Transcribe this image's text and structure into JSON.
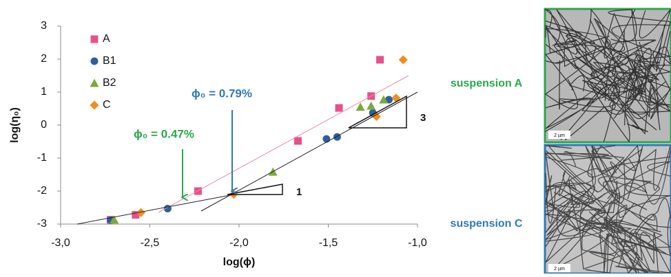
{
  "chart_data": {
    "type": "scatter",
    "xlabel": "log(ϕ)",
    "ylabel": "log(η₀)",
    "xlim": [
      -3.0,
      -1.0
    ],
    "xticks": [
      {
        "value": -3.0,
        "label": "-3,0"
      },
      {
        "value": -2.5,
        "label": "-2,5"
      },
      {
        "value": -2.0,
        "label": "-2,0"
      },
      {
        "value": -1.5,
        "label": "-1,5"
      },
      {
        "value": -1.0,
        "label": "-1,0"
      }
    ],
    "ylim": [
      -3,
      3
    ],
    "yticks": [
      3,
      2,
      1,
      0,
      -1,
      -2,
      -3
    ],
    "legend": "upper left",
    "series": [
      {
        "name": "A",
        "color": "#e8508a",
        "marker": "square",
        "x": [
          -2.72,
          -2.58,
          -2.23,
          -1.67,
          -1.44,
          -1.26,
          -1.21
        ],
        "values": [
          -2.87,
          -2.72,
          -2.0,
          -0.48,
          0.52,
          0.88,
          1.98
        ]
      },
      {
        "name": "B1",
        "color": "#2e5f9a",
        "marker": "circle",
        "x": [
          -2.72,
          -2.4,
          -1.51,
          -1.45,
          -1.25,
          -1.16
        ],
        "values": [
          -2.88,
          -2.53,
          -0.42,
          -0.36,
          0.37,
          0.77
        ]
      },
      {
        "name": "B2",
        "color": "#7aab3a",
        "marker": "triangle",
        "x": [
          -2.7,
          -1.81,
          -1.32,
          -1.26,
          -1.19
        ],
        "values": [
          -2.87,
          -1.42,
          0.55,
          0.58,
          0.77
        ]
      },
      {
        "name": "C",
        "color": "#f28c1e",
        "marker": "diamond",
        "x": [
          -2.55,
          -2.03,
          -1.23,
          -1.12,
          -1.08
        ],
        "values": [
          -2.65,
          -2.1,
          0.26,
          0.82,
          1.98
        ]
      }
    ],
    "annotations": [
      "ϕ₀ = 0.79%",
      "ϕ₀ = 0.47%",
      "1",
      "3"
    ],
    "panels": [
      {
        "label": "suspension A",
        "scale": "2 µm"
      },
      {
        "label": "suspension C",
        "scale": "2 µm"
      }
    ]
  }
}
